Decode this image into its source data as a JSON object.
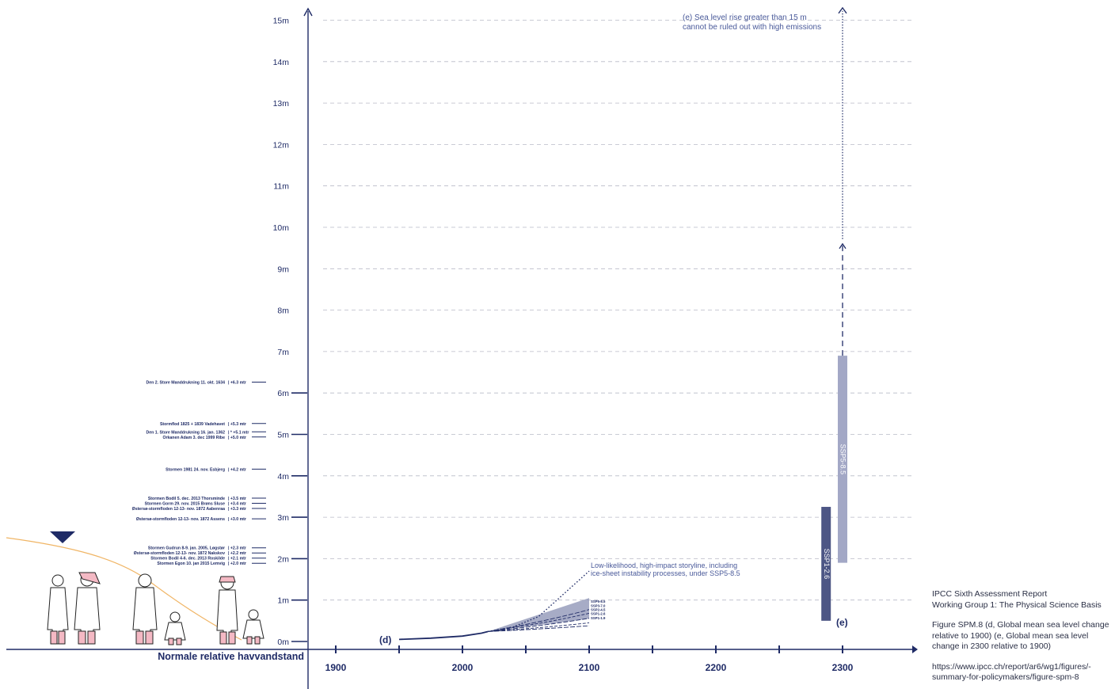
{
  "chart_data": {
    "type": "line",
    "baseline_label": "Normale relative havvandstand",
    "y_ticks": [
      "0m",
      "1m",
      "2m",
      "3m",
      "4m",
      "5m",
      "6m",
      "7m",
      "8m",
      "9m",
      "10m",
      "11m",
      "12m",
      "13m",
      "14m",
      "15m"
    ],
    "x_ticks": [
      "1900",
      "2000",
      "2100",
      "2200",
      "2300"
    ],
    "ylim": [
      0,
      15.5
    ],
    "xlim": [
      1875,
      2350
    ],
    "grid": true,
    "storm_events": [
      {
        "label": "Den 2. Store Manddrukning 11. okt. 1634",
        "value_label": "+6.3 mtr",
        "value": 6.3
      },
      {
        "label": "Stormflod 1825 + 1839 Vadehavet",
        "value_label": "+5.3 mtr",
        "value": 5.3
      },
      {
        "label": "Den 1. Store Manddrukning 16. jan. 1362",
        "value_label": "* +5.1 mtr",
        "value": 5.1
      },
      {
        "label": "Orkanen Adam 3. dec 1999 Ribe",
        "value_label": "+5.0 mtr",
        "value": 5.0
      },
      {
        "label": "Stormen 1981 24. nov. Esbjerg",
        "value_label": "+4.2 mtr",
        "value": 4.2
      },
      {
        "label": "Stormen Bodil 5. dec. 2013 Thorsminde",
        "value_label": "+3.5 mtr",
        "value": 3.5
      },
      {
        "label": "Stormen Gorm 29. nov. 2015 Brøns Sluse",
        "value_label": "+3.4 mtr",
        "value": 3.4
      },
      {
        "label": "Østersø-stormfloden 12-13- nov. 1872 Aabenraa",
        "value_label": "+3.3 mtr",
        "value": 3.3
      },
      {
        "label": "Østersø-stormfloden 12-13- nov. 1872 Assens",
        "value_label": "+3.0 mtr",
        "value": 3.0
      },
      {
        "label": "Stormen Gudrun 8-9. jan. 2005, Løgstør",
        "value_label": "+2.3 mtr",
        "value": 2.3
      },
      {
        "label": "Østersø-stormfloden 12-13- nov. 1872 Nakskov",
        "value_label": "+2.2 mtr",
        "value": 2.2
      },
      {
        "label": "Stormen Bodil 4-6. dec. 2013 Roskilde",
        "value_label": "+2.1 mtr",
        "value": 2.1
      },
      {
        "label": "Stormen Egon 10. jan 2015 Lemvig",
        "value_label": "+2.0 mtr",
        "value": 2.0
      }
    ],
    "panel_d": {
      "label": "(d)",
      "observed": {
        "x": [
          1950,
          1975,
          2000,
          2015,
          2020
        ],
        "y": [
          0.05,
          0.08,
          0.13,
          0.2,
          0.24
        ]
      },
      "scenario_labels": [
        "SSP5-8.5",
        "SSP3-7.0",
        "SSP2-4.5",
        "SSP1-2.6",
        "SSP1-1.9"
      ],
      "fan": {
        "x_start": 2020,
        "x_end": 2100,
        "y_start": 0.24,
        "upper_end": 1.05,
        "lower_end": 0.55,
        "medians_end": [
          0.77,
          0.68,
          0.56,
          0.45,
          0.38
        ]
      },
      "high_impact": {
        "x": [
          2020,
          2040,
          2060,
          2080,
          2100
        ],
        "y": [
          0.24,
          0.35,
          0.6,
          1.15,
          1.7
        ],
        "annotation": [
          "Low-likelihood, high-impact storyline, including",
          "ice-sheet instability processes, under SSP5-8.5"
        ]
      }
    },
    "panel_e": {
      "label": "(e)",
      "bars": [
        {
          "name": "SSP1-2.6",
          "x": 2287,
          "low": 0.5,
          "high": 3.25,
          "color": "#4d5685"
        },
        {
          "name": "SSP5-8.5",
          "x": 2300,
          "low": 1.9,
          "high": 6.9,
          "color": "#a3a8c6"
        }
      ],
      "arrow_chevron_at": 9.6,
      "arrow_top_at": 15.3,
      "annotation": [
        "(e) Sea level rise greater than 15 m",
        "cannot be ruled out with high emissions"
      ]
    }
  },
  "source_note": {
    "lines_a": [
      "IPCC Sixth Assessment Report",
      "Working Group 1: The Physical Science Basis"
    ],
    "lines_b": [
      "Figure SPM.8 (d, Global mean sea level change",
      "relative to 1900) (e, Global mean sea level",
      "change in 2300 relative to 1900)"
    ],
    "lines_c": [
      "https://www.ipcc.ch/report/ar6/wg1/figures/-",
      "summary-for-policymakers/figure-spm-8"
    ]
  },
  "colors": {
    "axis": "#1f2b66",
    "grid": "#b8bac7",
    "observed": "#1f2b66",
    "fan": "#8a90b3",
    "terrain": "#f0b565",
    "boots": "#f4b9c4"
  }
}
